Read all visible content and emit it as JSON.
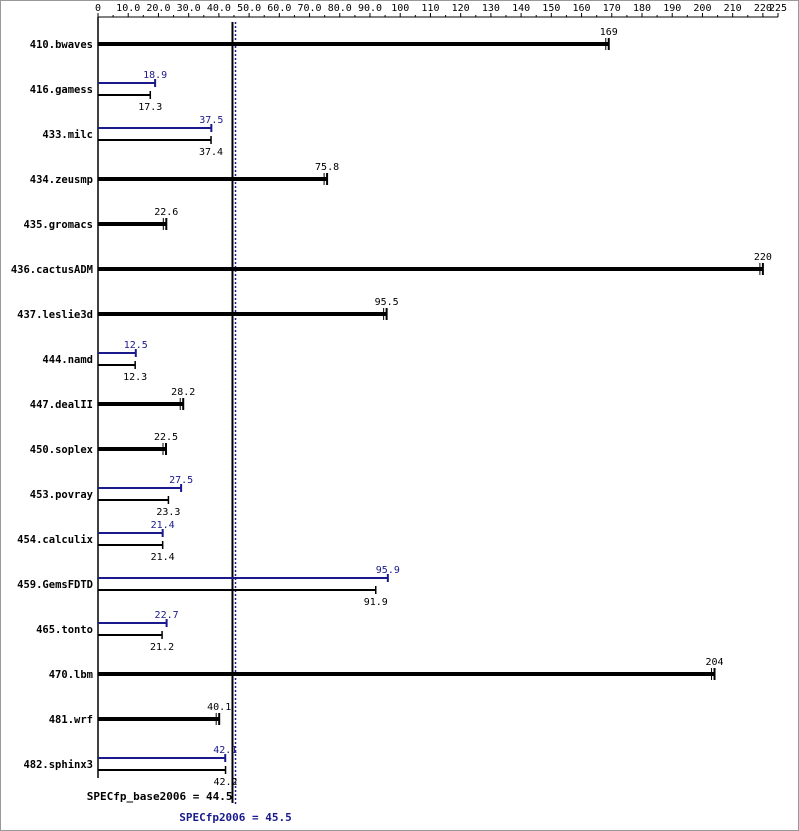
{
  "chart_data": {
    "type": "bar",
    "orientation": "horizontal",
    "xlim": [
      0,
      225
    ],
    "tick_labels": [
      "0",
      "10.0",
      "20.0",
      "30.0",
      "40.0",
      "50.0",
      "60.0",
      "70.0",
      "80.0",
      "90.0",
      "100",
      "110",
      "120",
      "130",
      "140",
      "150",
      "160",
      "170",
      "180",
      "190",
      "200",
      "210",
      "220",
      "225"
    ],
    "ticks": [
      0,
      10,
      20,
      30,
      40,
      50,
      60,
      70,
      80,
      90,
      100,
      110,
      120,
      130,
      140,
      150,
      160,
      170,
      180,
      190,
      200,
      210,
      220,
      225
    ],
    "colors": {
      "peak": "#1a1a8c",
      "base": "#000000"
    },
    "benchmarks": [
      {
        "name": "410.bwaves",
        "base": 169,
        "base_label": "169",
        "peak": null,
        "peak_label": ""
      },
      {
        "name": "416.gamess",
        "base": 17.3,
        "base_label": "17.3",
        "peak": 18.9,
        "peak_label": "18.9"
      },
      {
        "name": "433.milc",
        "base": 37.4,
        "base_label": "37.4",
        "peak": 37.5,
        "peak_label": "37.5"
      },
      {
        "name": "434.zeusmp",
        "base": 75.8,
        "base_label": "75.8",
        "peak": null,
        "peak_label": ""
      },
      {
        "name": "435.gromacs",
        "base": 22.6,
        "base_label": "22.6",
        "peak": null,
        "peak_label": ""
      },
      {
        "name": "436.cactusADM",
        "base": 220,
        "base_label": "220",
        "peak": null,
        "peak_label": ""
      },
      {
        "name": "437.leslie3d",
        "base": 95.5,
        "base_label": "95.5",
        "peak": null,
        "peak_label": ""
      },
      {
        "name": "444.namd",
        "base": 12.3,
        "base_label": "12.3",
        "peak": 12.5,
        "peak_label": "12.5"
      },
      {
        "name": "447.dealII",
        "base": 28.2,
        "base_label": "28.2",
        "peak": null,
        "peak_label": ""
      },
      {
        "name": "450.soplex",
        "base": 22.5,
        "base_label": "22.5",
        "peak": null,
        "peak_label": ""
      },
      {
        "name": "453.povray",
        "base": 23.3,
        "base_label": "23.3",
        "peak": 27.5,
        "peak_label": "27.5"
      },
      {
        "name": "454.calculix",
        "base": 21.4,
        "base_label": "21.4",
        "peak": 21.4,
        "peak_label": "21.4"
      },
      {
        "name": "459.GemsFDTD",
        "base": 91.9,
        "base_label": "91.9",
        "peak": 95.9,
        "peak_label": "95.9"
      },
      {
        "name": "465.tonto",
        "base": 21.2,
        "base_label": "21.2",
        "peak": 22.7,
        "peak_label": "22.7"
      },
      {
        "name": "470.lbm",
        "base": 204,
        "base_label": "204",
        "peak": null,
        "peak_label": ""
      },
      {
        "name": "481.wrf",
        "base": 40.1,
        "base_label": "40.1",
        "peak": null,
        "peak_label": ""
      },
      {
        "name": "482.sphinx3",
        "base": 42.2,
        "base_label": "42.2",
        "peak": 42.1,
        "peak_label": "42.1"
      }
    ],
    "base_summary": {
      "label": "SPECfp_base2006 = 44.5",
      "value": 44.5
    },
    "peak_summary": {
      "label": "SPECfp2006 = 45.5",
      "value": 45.5
    }
  }
}
